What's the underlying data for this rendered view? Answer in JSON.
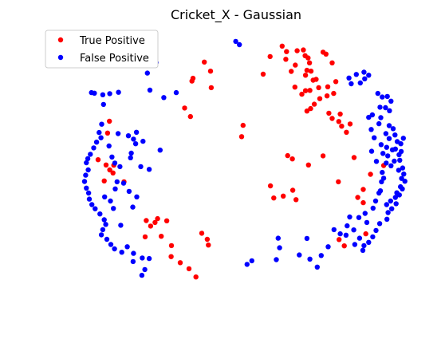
{
  "chart_data": {
    "type": "scatter",
    "title": "Cricket_X - Gaussian",
    "xlabel": "",
    "ylabel": "",
    "axes_visible": false,
    "grid": false,
    "legend_placement": "top-left",
    "xlim": [
      0,
      100
    ],
    "ylim": [
      0,
      100
    ],
    "series": [
      {
        "name": "True Positive",
        "color": "#ff0000",
        "points": [
          [
            41.1,
            90.5
          ],
          [
            42.8,
            87.2
          ],
          [
            38.0,
            84.6
          ],
          [
            37.7,
            83.6
          ],
          [
            43.0,
            81.2
          ],
          [
            35.7,
            73.8
          ],
          [
            37.3,
            70.7
          ],
          [
            51.7,
            67.5
          ],
          [
            51.3,
            63.4
          ],
          [
            57.2,
            86.1
          ],
          [
            59.1,
            92.5
          ],
          [
            62.4,
            96.3
          ],
          [
            63.6,
            94.3
          ],
          [
            63.4,
            91.5
          ],
          [
            66.5,
            94.6
          ],
          [
            68.2,
            94.9
          ],
          [
            68.7,
            92.8
          ],
          [
            69.9,
            90.2
          ],
          [
            69.5,
            92.0
          ],
          [
            64.9,
            87.1
          ],
          [
            66.0,
            89.4
          ],
          [
            69.2,
            87.5
          ],
          [
            70.3,
            87.2
          ],
          [
            68.8,
            85.7
          ],
          [
            71.7,
            84.2
          ],
          [
            73.6,
            94.1
          ],
          [
            74.4,
            93.4
          ],
          [
            76.1,
            90.2
          ],
          [
            77.1,
            83.4
          ],
          [
            70.9,
            83.9
          ],
          [
            65.9,
            81.4
          ],
          [
            72.4,
            81.2
          ],
          [
            70.0,
            80.2
          ],
          [
            67.8,
            78.8
          ],
          [
            68.8,
            80.1
          ],
          [
            74.9,
            81.5
          ],
          [
            76.5,
            79.1
          ],
          [
            74.7,
            78.2
          ],
          [
            72.7,
            77.2
          ],
          [
            71.2,
            75.2
          ],
          [
            69.2,
            72.7
          ],
          [
            70.2,
            73.6
          ],
          [
            78.3,
            71.6
          ],
          [
            75.2,
            71.9
          ],
          [
            77.9,
            68.9
          ],
          [
            76.1,
            70.0
          ],
          [
            78.7,
            67.2
          ],
          [
            80.0,
            65.0
          ],
          [
            81.0,
            68.0
          ],
          [
            73.6,
            56.4
          ],
          [
            69.6,
            53.1
          ],
          [
            63.9,
            56.5
          ],
          [
            65.2,
            55.3
          ],
          [
            65.3,
            43.9
          ],
          [
            62.7,
            41.8
          ],
          [
            59.2,
            45.5
          ],
          [
            60.1,
            41.1
          ],
          [
            66.2,
            40.5
          ],
          [
            77.8,
            47.0
          ],
          [
            84.6,
            44.2
          ],
          [
            83.1,
            41.3
          ],
          [
            14.6,
            64.7
          ],
          [
            15.1,
            69.0
          ],
          [
            12.0,
            55.0
          ],
          [
            15.2,
            51.3
          ],
          [
            14.2,
            53.1
          ],
          [
            16.3,
            53.0
          ],
          [
            16.1,
            50.2
          ],
          [
            13.7,
            47.3
          ],
          [
            19.1,
            47.0
          ],
          [
            28.3,
            33.6
          ],
          [
            25.2,
            32.9
          ],
          [
            26.4,
            30.9
          ],
          [
            24.9,
            27.0
          ],
          [
            29.3,
            27.2
          ],
          [
            27.6,
            32.2
          ],
          [
            32.1,
            23.8
          ],
          [
            32.0,
            19.8
          ],
          [
            34.5,
            17.6
          ],
          [
            36.9,
            15.4
          ],
          [
            38.8,
            12.4
          ],
          [
            42.2,
            24.0
          ],
          [
            41.9,
            26.1
          ],
          [
            40.4,
            28.3
          ],
          [
            30.8,
            32.8
          ],
          [
            78.0,
            26.0
          ],
          [
            79.4,
            23.7
          ],
          [
            85.3,
            28.1
          ],
          [
            84.6,
            39.4
          ],
          [
            86.6,
            49.7
          ],
          [
            82.1,
            55.8
          ],
          [
            90.2,
            52.9
          ]
        ]
      },
      {
        "name": "False Positive",
        "color": "#0000ff",
        "points": [
          [
            49.7,
            98.0
          ],
          [
            50.7,
            96.8
          ],
          [
            22.5,
            89.8
          ],
          [
            27.9,
            90.3
          ],
          [
            25.3,
            91.1
          ],
          [
            25.5,
            86.5
          ],
          [
            10.2,
            79.4
          ],
          [
            11.0,
            79.2
          ],
          [
            13.3,
            78.6
          ],
          [
            15.2,
            79.0
          ],
          [
            17.6,
            79.5
          ],
          [
            13.5,
            75.1
          ],
          [
            30.0,
            77.6
          ],
          [
            26.2,
            80.3
          ],
          [
            33.4,
            79.4
          ],
          [
            84.8,
            86.8
          ],
          [
            86.1,
            85.7
          ],
          [
            85.0,
            84.4
          ],
          [
            82.7,
            86.0
          ],
          [
            83.8,
            82.9
          ],
          [
            81.3,
            82.6
          ],
          [
            80.7,
            84.7
          ],
          [
            88.6,
            79.1
          ],
          [
            89.8,
            77.8
          ],
          [
            91.2,
            78.0
          ],
          [
            92.2,
            76.3
          ],
          [
            89.2,
            74.1
          ],
          [
            90.7,
            73.9
          ],
          [
            91.8,
            72.8
          ],
          [
            87.1,
            71.3
          ],
          [
            86.1,
            70.4
          ],
          [
            89.4,
            70.3
          ],
          [
            88.9,
            68.1
          ],
          [
            91.7,
            67.4
          ],
          [
            92.8,
            66.3
          ],
          [
            93.3,
            64.0
          ],
          [
            93.9,
            61.6
          ],
          [
            94.9,
            60.8
          ],
          [
            95.6,
            62.8
          ],
          [
            95.0,
            58.0
          ],
          [
            94.4,
            56.8
          ],
          [
            93.1,
            54.5
          ],
          [
            92.2,
            52.8
          ],
          [
            94.3,
            51.2
          ],
          [
            95.1,
            48.2
          ],
          [
            94.8,
            45.2
          ],
          [
            93.8,
            43.0
          ],
          [
            93.4,
            41.3
          ],
          [
            92.1,
            40.0
          ],
          [
            91.0,
            38.7
          ],
          [
            92.4,
            37.2
          ],
          [
            91.4,
            35.8
          ],
          [
            91.1,
            33.4
          ],
          [
            89.1,
            31.8
          ],
          [
            88.1,
            29.3
          ],
          [
            87.2,
            27.0
          ],
          [
            86.1,
            25.0
          ],
          [
            84.8,
            23.8
          ],
          [
            84.5,
            22.1
          ],
          [
            82.3,
            24.2
          ],
          [
            83.6,
            26.5
          ],
          [
            85.6,
            32.2
          ],
          [
            82.0,
            29.5
          ],
          [
            79.9,
            27.6
          ],
          [
            78.3,
            28.1
          ],
          [
            80.9,
            34.2
          ],
          [
            83.4,
            34.0
          ],
          [
            85.1,
            35.5
          ],
          [
            87.3,
            37.4
          ],
          [
            88.9,
            42.9
          ],
          [
            89.6,
            47.0
          ],
          [
            89.8,
            50.4
          ],
          [
            90.9,
            53.8
          ],
          [
            91.3,
            56.4
          ],
          [
            92.6,
            58.6
          ],
          [
            91.7,
            62.7
          ],
          [
            90.8,
            64.5
          ],
          [
            86.9,
            58.1
          ],
          [
            88.2,
            54.4
          ],
          [
            89.5,
            60.5
          ],
          [
            87.6,
            63.0
          ],
          [
            86.8,
            66.0
          ],
          [
            13.0,
            67.9
          ],
          [
            12.3,
            64.9
          ],
          [
            12.8,
            63.0
          ],
          [
            11.6,
            61.4
          ],
          [
            10.8,
            59.3
          ],
          [
            9.9,
            57.0
          ],
          [
            9.2,
            55.4
          ],
          [
            8.8,
            53.9
          ],
          [
            9.3,
            51.3
          ],
          [
            8.6,
            49.4
          ],
          [
            8.3,
            47.1
          ],
          [
            8.8,
            44.7
          ],
          [
            9.4,
            42.9
          ],
          [
            9.6,
            40.7
          ],
          [
            10.3,
            38.7
          ],
          [
            11.2,
            37.2
          ],
          [
            12.5,
            35.3
          ],
          [
            13.7,
            33.2
          ],
          [
            14.1,
            31.5
          ],
          [
            13.3,
            29.6
          ],
          [
            12.9,
            27.7
          ],
          [
            14.4,
            26.1
          ],
          [
            15.5,
            24.2
          ],
          [
            16.5,
            22.6
          ],
          [
            18.5,
            21.4
          ],
          [
            20.0,
            23.4
          ],
          [
            21.7,
            21.0
          ],
          [
            24.1,
            19.3
          ],
          [
            26.0,
            19.1
          ],
          [
            21.6,
            18.0
          ],
          [
            24.8,
            15.1
          ],
          [
            24.0,
            13.0
          ],
          [
            18.2,
            31.2
          ],
          [
            21.5,
            37.8
          ],
          [
            22.6,
            41.5
          ],
          [
            20.5,
            43.5
          ],
          [
            19.0,
            46.5
          ],
          [
            17.2,
            47.0
          ],
          [
            16.7,
            44.4
          ],
          [
            18.0,
            52.5
          ],
          [
            20.9,
            55.7
          ],
          [
            21.1,
            57.4
          ],
          [
            21.7,
            62.5
          ],
          [
            22.3,
            60.8
          ],
          [
            24.3,
            61.7
          ],
          [
            22.5,
            65.0
          ],
          [
            20.3,
            63.7
          ],
          [
            29.0,
            58.5
          ],
          [
            23.7,
            52.5
          ],
          [
            26.0,
            51.5
          ],
          [
            17.5,
            64.5
          ],
          [
            15.0,
            60.0
          ],
          [
            15.8,
            56.0
          ],
          [
            16.6,
            53.8
          ],
          [
            13.8,
            41.5
          ],
          [
            15.4,
            40.0
          ],
          [
            16.2,
            37.3
          ],
          [
            52.8,
            17.0
          ],
          [
            54.1,
            18.3
          ],
          [
            60.8,
            18.7
          ],
          [
            61.7,
            23.0
          ],
          [
            61.3,
            26.5
          ],
          [
            69.2,
            26.4
          ],
          [
            67.1,
            20.4
          ],
          [
            72.0,
            16.0
          ],
          [
            70.0,
            18.9
          ],
          [
            73.1,
            20.2
          ],
          [
            75.0,
            23.4
          ],
          [
            76.6,
            29.6
          ],
          [
            80.2,
            31.0
          ],
          [
            88.0,
            40.0
          ],
          [
            89.3,
            43.7
          ],
          [
            90.2,
            48.3
          ],
          [
            90.0,
            57.3
          ],
          [
            91.0,
            59.5
          ],
          [
            93.4,
            58.9
          ],
          [
            94.6,
            54.8
          ],
          [
            95.4,
            52.0
          ],
          [
            95.7,
            49.8
          ],
          [
            96.0,
            47.2
          ],
          [
            95.3,
            44.4
          ],
          [
            94.5,
            42.2
          ],
          [
            93.6,
            39.0
          ]
        ]
      }
    ]
  }
}
